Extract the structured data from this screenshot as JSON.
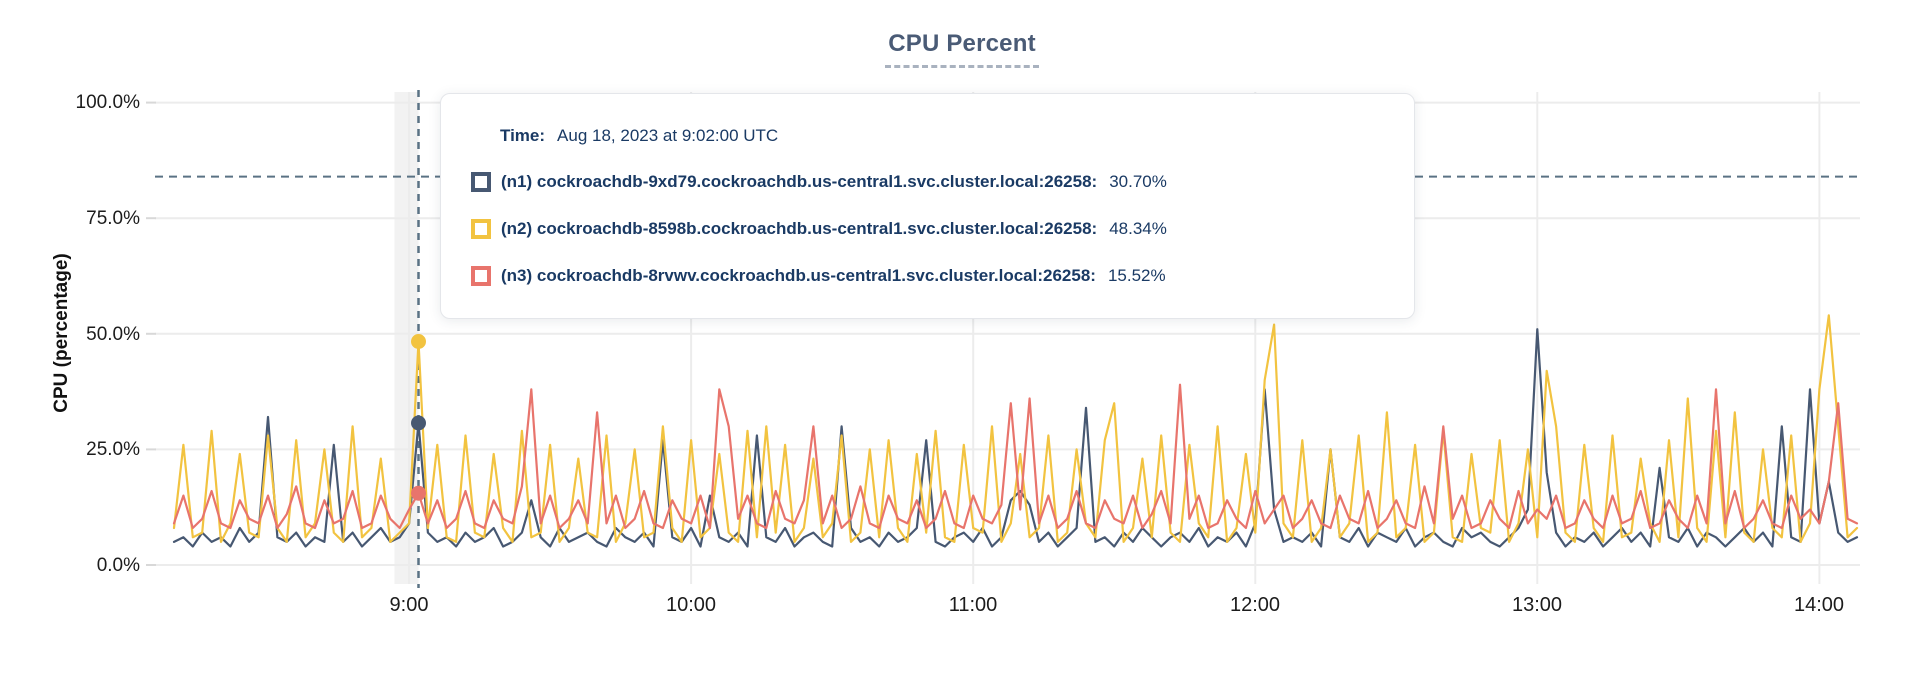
{
  "title": "CPU Percent",
  "axes": {
    "y_label": "CPU (percentage)",
    "y_ticks": [
      "100.0%",
      "75.0%",
      "50.0%",
      "25.0%",
      "0.0%"
    ],
    "x_ticks": [
      "9:00",
      "10:00",
      "11:00",
      "12:00",
      "13:00",
      "14:00"
    ]
  },
  "tooltip": {
    "time_label": "Time:",
    "time_value": "Aug 18, 2023 at 9:02:00 UTC",
    "rows": [
      {
        "label": "(n1) cockroachdb-9xd79.cockroachdb.us-central1.svc.cluster.local:26258:",
        "value": "30.70%"
      },
      {
        "label": "(n2) cockroachdb-8598b.cockroachdb.us-central1.svc.cluster.local:26258:",
        "value": "48.34%"
      },
      {
        "label": "(n3) cockroachdb-8rvwv.cockroachdb.us-central1.svc.cluster.local:26258:",
        "value": "15.52%"
      }
    ]
  },
  "colors": {
    "title": "#4A5B76",
    "tooltip_text": "#1A3A64",
    "grid": "#ECECEC",
    "guide_dashed": "#5A7284",
    "hover_band": "#F2F2F2"
  },
  "chart_data": {
    "type": "line",
    "title": "CPU Percent",
    "xlabel": "",
    "ylabel": "CPU (percentage)",
    "ylim": [
      0,
      100
    ],
    "grid": true,
    "legend_position": "tooltip-overlay",
    "x_start": "08:10",
    "x_step_minutes": 2,
    "x_end": "14:08",
    "x_tick_labels": [
      "9:00",
      "10:00",
      "11:00",
      "12:00",
      "13:00",
      "14:00"
    ],
    "x_tick_indices": [
      25,
      55,
      85,
      115,
      145,
      175
    ],
    "y_tick_values": [
      100,
      75,
      50,
      25,
      0
    ],
    "threshold_percent": 84,
    "hover": {
      "index": 26,
      "time": "Aug 18, 2023 at 9:02:00 UTC"
    },
    "series": [
      {
        "id": "n1",
        "name": "(n1) cockroachdb-9xd79.cockroachdb.us-central1.svc.cluster.local:26258",
        "color": "#475872",
        "hover_value_percent": 30.7,
        "values": [
          5,
          6,
          4,
          7,
          5,
          6,
          4,
          8,
          5,
          7,
          32,
          6,
          5,
          7,
          4,
          6,
          5,
          26,
          5,
          7,
          4,
          6,
          8,
          5,
          6,
          9,
          30.7,
          7,
          5,
          6,
          4,
          7,
          5,
          6,
          8,
          4,
          5,
          7,
          14,
          6,
          4,
          8,
          5,
          6,
          7,
          5,
          4,
          8,
          6,
          5,
          7,
          4,
          27,
          6,
          5,
          8,
          4,
          15,
          6,
          5,
          7,
          4,
          28,
          6,
          5,
          8,
          4,
          6,
          7,
          5,
          4,
          30,
          8,
          5,
          6,
          4,
          7,
          5,
          6,
          8,
          27,
          5,
          4,
          6,
          7,
          5,
          8,
          4,
          6,
          14,
          16,
          13,
          5,
          7,
          4,
          6,
          8,
          34,
          5,
          6,
          4,
          7,
          5,
          8,
          6,
          4,
          6,
          7,
          5,
          8,
          4,
          6,
          5,
          7,
          4,
          9,
          38,
          12,
          5,
          6,
          5,
          7,
          4,
          25,
          6,
          5,
          8,
          4,
          7,
          6,
          5,
          8,
          4,
          6,
          7,
          5,
          4,
          8,
          6,
          7,
          5,
          4,
          6,
          8,
          12,
          51,
          20,
          7,
          4,
          6,
          5,
          7,
          4,
          6,
          8,
          5,
          7,
          4,
          21,
          6,
          5,
          8,
          4,
          7,
          6,
          4,
          6,
          8,
          5,
          7,
          4,
          30,
          6,
          5,
          38,
          9,
          18,
          7,
          5,
          6
        ]
      },
      {
        "id": "n2",
        "name": "(n2) cockroachdb-8598b.cockroachdb.us-central1.svc.cluster.local:26258",
        "color": "#F2C340",
        "hover_value_percent": 48.34,
        "values": [
          8,
          26,
          6,
          7,
          29,
          5,
          9,
          24,
          7,
          6,
          28,
          8,
          5,
          27,
          6,
          9,
          25,
          7,
          5,
          30,
          6,
          8,
          23,
          5,
          7,
          9,
          48.34,
          8,
          26,
          6,
          5,
          28,
          7,
          6,
          24,
          8,
          5,
          29,
          6,
          7,
          26,
          5,
          8,
          23,
          7,
          6,
          28,
          5,
          9,
          25,
          6,
          7,
          30,
          8,
          5,
          27,
          6,
          8,
          24,
          7,
          5,
          29,
          6,
          30,
          7,
          26,
          5,
          8,
          23,
          6,
          9,
          28,
          5,
          7,
          25,
          6,
          27,
          8,
          5,
          24,
          7,
          29,
          6,
          5,
          26,
          8,
          7,
          30,
          5,
          9,
          24,
          6,
          8,
          28,
          5,
          7,
          25,
          9,
          6,
          27,
          35,
          5,
          8,
          23,
          6,
          28,
          7,
          5,
          26,
          9,
          6,
          30,
          5,
          8,
          24,
          7,
          40,
          52,
          9,
          6,
          27,
          5,
          8,
          25,
          6,
          9,
          28,
          5,
          7,
          33,
          6,
          8,
          26,
          5,
          7,
          29,
          6,
          5,
          24,
          8,
          7,
          27,
          5,
          9,
          25,
          6,
          42,
          30,
          7,
          5,
          26,
          8,
          5,
          28,
          6,
          7,
          23,
          9,
          5,
          27,
          6,
          36,
          8,
          5,
          29,
          6,
          33,
          7,
          5,
          25,
          8,
          6,
          28,
          5,
          9,
          38,
          54,
          30,
          6,
          8
        ]
      },
      {
        "id": "n3",
        "name": "(n3) cockroachdb-8rvwv.cockroachdb.us-central1.svc.cluster.local:26258",
        "color": "#E8746C",
        "hover_value_percent": 15.52,
        "values": [
          9,
          15,
          8,
          10,
          16,
          9,
          8,
          14,
          10,
          9,
          15,
          8,
          11,
          17,
          9,
          8,
          14,
          9,
          10,
          16,
          8,
          9,
          15,
          10,
          8,
          12,
          15.52,
          9,
          14,
          8,
          10,
          16,
          9,
          8,
          14,
          10,
          9,
          17,
          38,
          9,
          15,
          8,
          10,
          14,
          9,
          33,
          9,
          15,
          8,
          10,
          16,
          9,
          8,
          14,
          10,
          9,
          15,
          8,
          38,
          30,
          10,
          15,
          9,
          8,
          16,
          10,
          9,
          14,
          30,
          9,
          15,
          8,
          10,
          17,
          9,
          8,
          15,
          10,
          9,
          14,
          8,
          10,
          16,
          9,
          8,
          15,
          10,
          9,
          13,
          35,
          12,
          36,
          9,
          15,
          8,
          10,
          16,
          9,
          8,
          14,
          10,
          9,
          15,
          8,
          11,
          16,
          9,
          39,
          10,
          15,
          8,
          9,
          14,
          10,
          8,
          16,
          9,
          12,
          15,
          8,
          10,
          14,
          9,
          8,
          15,
          10,
          9,
          16,
          8,
          10,
          14,
          9,
          8,
          17,
          9,
          30,
          10,
          15,
          8,
          9,
          14,
          10,
          8,
          16,
          9,
          12,
          10,
          15,
          8,
          9,
          14,
          10,
          8,
          15,
          9,
          10,
          16,
          8,
          9,
          14,
          10,
          8,
          15,
          9,
          38,
          9,
          16,
          8,
          10,
          14,
          9,
          8,
          15,
          10,
          12,
          9,
          18,
          35,
          10,
          9
        ]
      }
    ]
  }
}
